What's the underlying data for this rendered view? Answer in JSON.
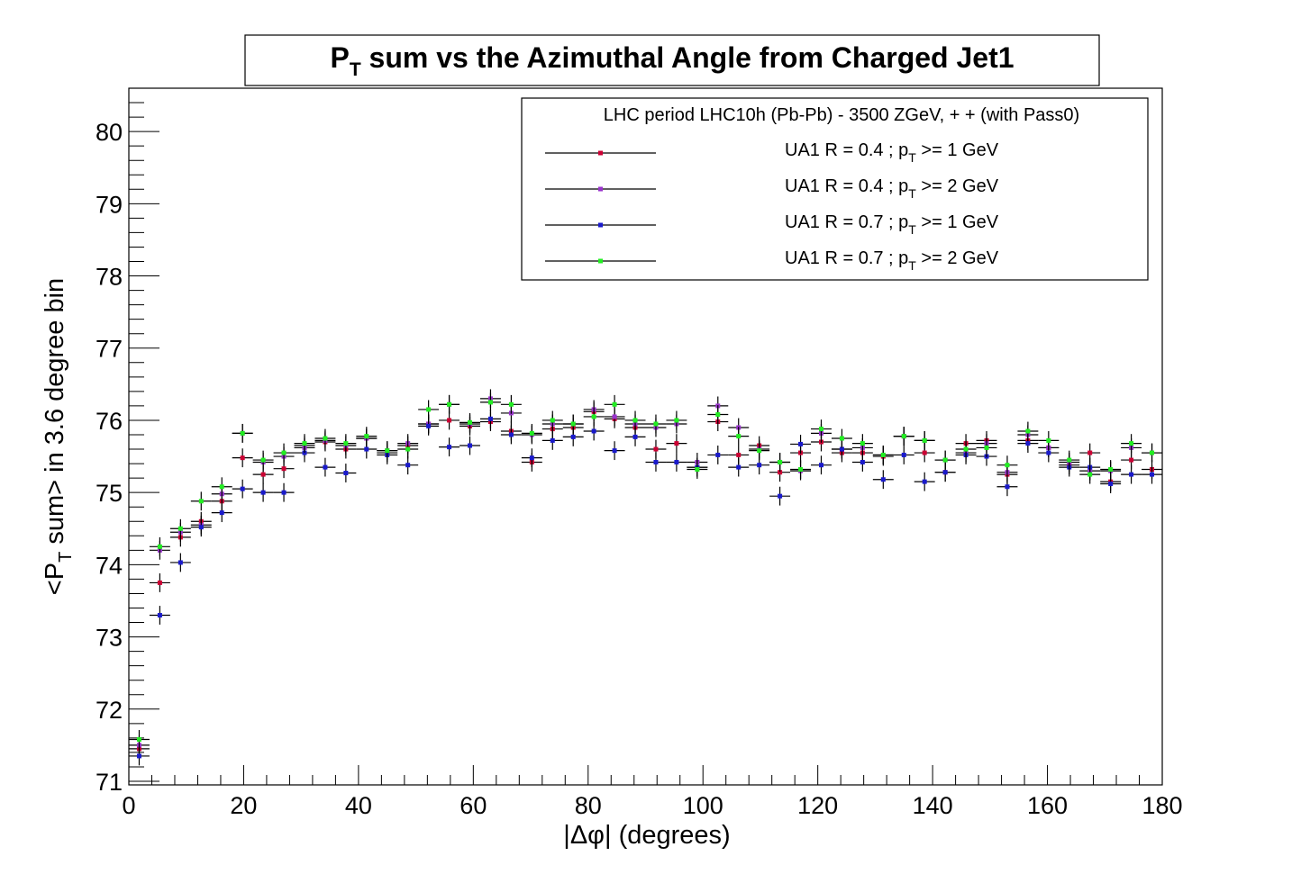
{
  "chart_data": {
    "type": "scatter",
    "title": {
      "main": "P",
      "sub": "T",
      "rest": " sum vs the Azimuthal Angle from Charged Jet1"
    },
    "xlabel": "|Δφ| (degrees)",
    "ylabel": {
      "pre": "<P",
      "sub": "T",
      "post": " sum> in 3.6 degree bin"
    },
    "xlim": [
      0,
      180
    ],
    "ylim": [
      70.95,
      80.6
    ],
    "x_ticks": [
      0,
      20,
      40,
      60,
      80,
      100,
      120,
      140,
      160,
      180
    ],
    "y_ticks": [
      71,
      72,
      73,
      74,
      75,
      76,
      77,
      78,
      79,
      80
    ],
    "bin_width": 3.6,
    "y_error": 0.13,
    "legend": {
      "header": "LHC period LHC10h (Pb-Pb) - 3500 ZGeV, + + (with Pass0)",
      "position": "top-right"
    },
    "x": [
      1.8,
      5.4,
      9.0,
      12.6,
      16.2,
      19.8,
      23.4,
      27.0,
      30.6,
      34.2,
      37.8,
      41.4,
      45.0,
      48.6,
      52.2,
      55.8,
      59.4,
      63.0,
      66.6,
      70.2,
      73.8,
      77.4,
      81.0,
      84.6,
      88.2,
      91.8,
      95.4,
      99.0,
      102.6,
      106.2,
      109.8,
      113.4,
      117.0,
      120.6,
      124.2,
      127.8,
      131.4,
      135.0,
      138.6,
      142.2,
      145.8,
      149.4,
      153.0,
      156.6,
      160.2,
      163.8,
      167.4,
      171.0,
      174.6,
      178.2
    ],
    "series": [
      {
        "name": {
          "pre": "UA1 R = 0.4 ; p",
          "sub": "T",
          "post": " >= 1 GeV"
        },
        "color": "#cc0033",
        "values": [
          71.45,
          73.75,
          74.38,
          74.6,
          74.88,
          75.48,
          75.25,
          75.33,
          75.65,
          75.7,
          75.6,
          75.75,
          75.55,
          75.65,
          75.95,
          76.0,
          75.92,
          75.98,
          75.85,
          75.42,
          75.88,
          75.9,
          76.12,
          76.02,
          75.9,
          75.6,
          75.68,
          75.35,
          75.98,
          75.52,
          75.65,
          75.28,
          75.55,
          75.7,
          75.55,
          75.55,
          75.5,
          75.78,
          75.55,
          75.28,
          75.68,
          75.72,
          75.25,
          75.72,
          75.62,
          75.38,
          75.55,
          75.15,
          75.45,
          75.32
        ]
      },
      {
        "name": {
          "pre": "UA1 R = 0.4 ; p",
          "sub": "T",
          "post": " >= 2 GeV"
        },
        "color": "#9933cc",
        "values": [
          71.5,
          74.2,
          74.45,
          74.55,
          74.98,
          75.82,
          75.42,
          75.5,
          75.62,
          75.72,
          75.65,
          75.75,
          75.58,
          75.68,
          75.95,
          76.22,
          75.95,
          76.3,
          76.1,
          75.8,
          75.95,
          75.95,
          76.15,
          76.05,
          75.95,
          75.9,
          75.95,
          75.42,
          76.2,
          75.9,
          75.6,
          75.42,
          75.3,
          75.82,
          75.6,
          75.62,
          75.52,
          75.78,
          75.72,
          75.45,
          75.55,
          75.68,
          75.28,
          75.8,
          75.62,
          75.42,
          75.3,
          75.3,
          75.62,
          75.55
        ]
      },
      {
        "name": {
          "pre": "UA1 R = 0.7 ; p",
          "sub": "T",
          "post": " >= 1 GeV"
        },
        "color": "#1a1acc",
        "values": [
          71.35,
          73.3,
          74.03,
          74.52,
          74.72,
          75.05,
          75.0,
          75.0,
          75.55,
          75.35,
          75.27,
          75.6,
          75.52,
          75.38,
          75.92,
          75.63,
          75.65,
          76.02,
          75.8,
          75.48,
          75.72,
          75.77,
          75.85,
          75.58,
          75.77,
          75.42,
          75.42,
          75.35,
          75.52,
          75.35,
          75.38,
          74.95,
          75.67,
          75.38,
          75.6,
          75.42,
          75.18,
          75.52,
          75.15,
          75.28,
          75.52,
          75.5,
          75.08,
          75.68,
          75.55,
          75.35,
          75.35,
          75.12,
          75.25,
          75.25
        ]
      },
      {
        "name": {
          "pre": "UA1 R = 0.7 ; p",
          "sub": "T",
          "post": " >= 2 GeV"
        },
        "color": "#22ee22",
        "values": [
          71.58,
          74.25,
          74.5,
          74.88,
          75.08,
          75.82,
          75.45,
          75.55,
          75.68,
          75.75,
          75.68,
          75.78,
          75.58,
          75.6,
          76.15,
          76.22,
          75.97,
          76.25,
          76.22,
          75.82,
          76.0,
          75.95,
          76.05,
          76.22,
          76.0,
          75.95,
          76.0,
          75.32,
          76.08,
          75.78,
          75.58,
          75.42,
          75.32,
          75.88,
          75.75,
          75.68,
          75.52,
          75.78,
          75.72,
          75.45,
          75.6,
          75.62,
          75.38,
          75.85,
          75.72,
          75.45,
          75.25,
          75.32,
          75.68,
          75.55
        ]
      }
    ]
  }
}
